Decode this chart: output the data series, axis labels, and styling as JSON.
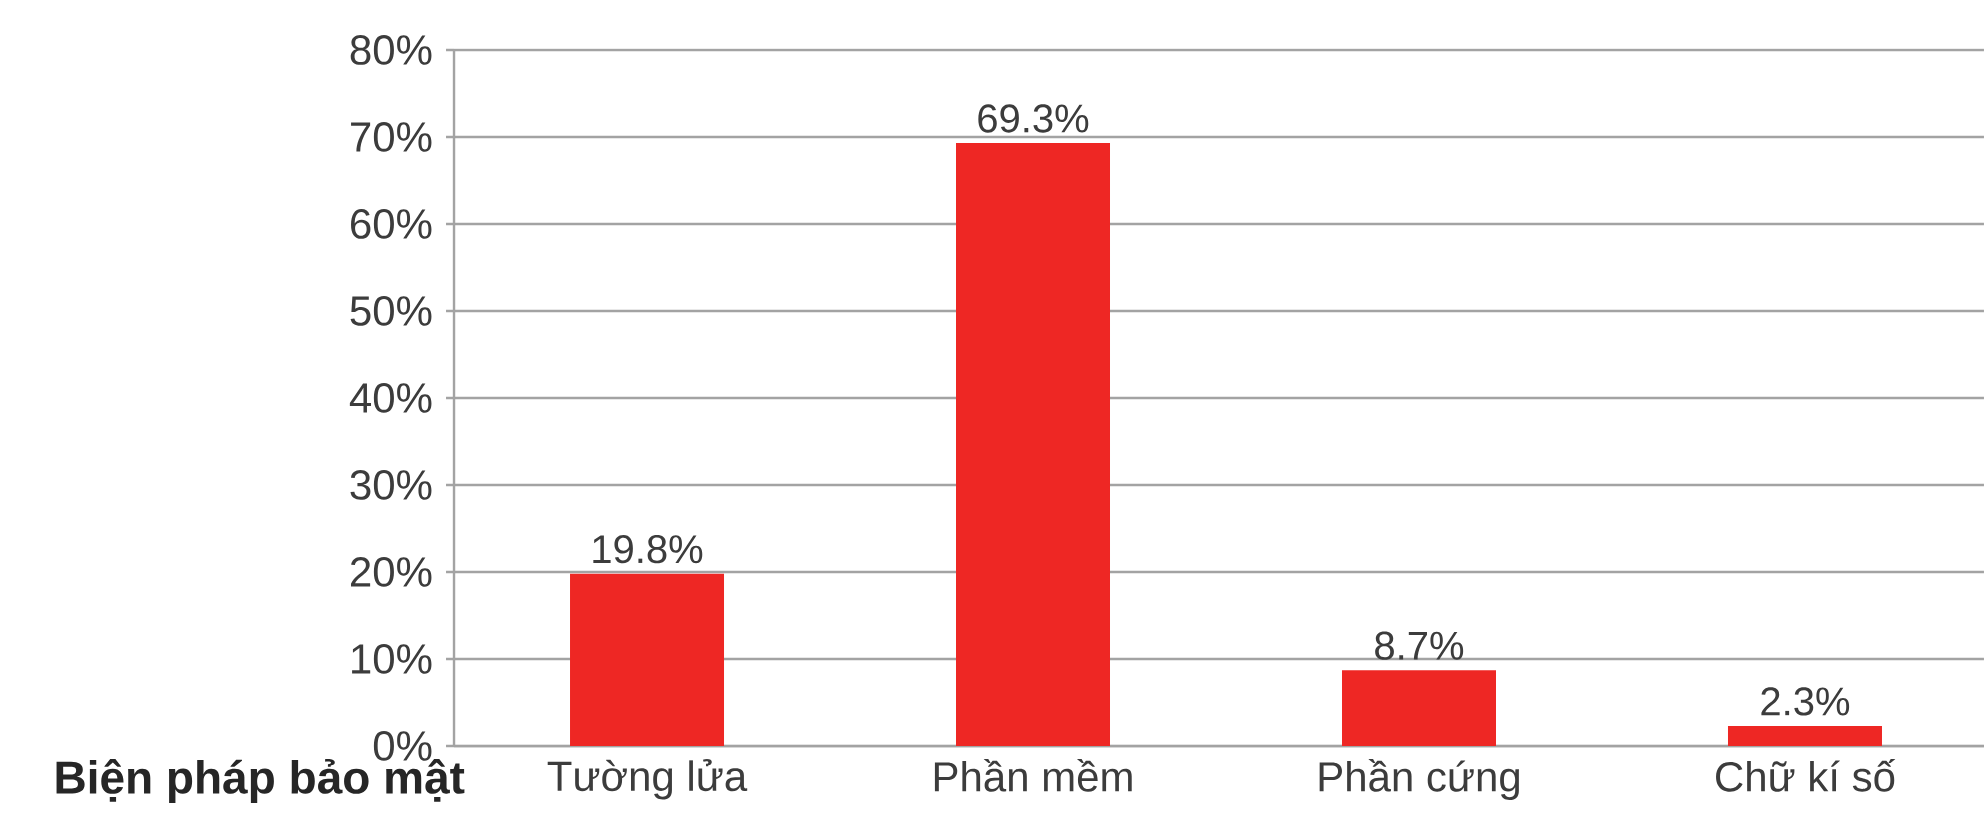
{
  "chart_data": {
    "type": "bar",
    "xlabel": "Biện pháp bảo mật",
    "categories": [
      "Tường lửa",
      "Phần mềm",
      "Phần cứng",
      "Chữ kí số"
    ],
    "values": [
      19.8,
      69.3,
      8.7,
      2.3
    ],
    "value_labels": [
      "19.8%",
      "69.3%",
      "8.7%",
      "2.3%"
    ],
    "color": "#ee2724",
    "ylim": [
      0,
      80
    ],
    "yticks": [
      {
        "value": 0,
        "label": "0%"
      },
      {
        "value": 10,
        "label": "10%"
      },
      {
        "value": 20,
        "label": "20%"
      },
      {
        "value": 30,
        "label": "30%"
      },
      {
        "value": 40,
        "label": "40%"
      },
      {
        "value": 50,
        "label": "50%"
      },
      {
        "value": 60,
        "label": "60%"
      },
      {
        "value": 70,
        "label": "70%"
      },
      {
        "value": 80,
        "label": "80%"
      }
    ],
    "grid": "y"
  }
}
